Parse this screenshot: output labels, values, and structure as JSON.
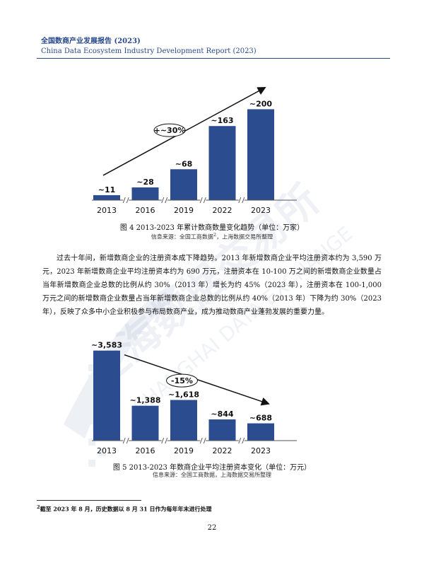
{
  "header": {
    "title_cn": "全国数商产业发展报告 (2023)",
    "title_en": "China Data Ecosystem Industry Development Report (2023)"
  },
  "watermark": {
    "text_cn": "上海数据交易所",
    "text_en": "SHANGHAI DATA EXCHANGE"
  },
  "figure4": {
    "caption": "图 4  2013-2023  年累计数商数量变化趋势（单位：万家）",
    "source": "信息来源：全国工商数据",
    "source_sup": "2",
    "source_tail": "，上海数据交易所整理",
    "chart_data": {
      "type": "bar",
      "categories": [
        "2013",
        "2016",
        "2019",
        "2022",
        "2023"
      ],
      "values": [
        11,
        28,
        68,
        163,
        200
      ],
      "value_labels": [
        "~11",
        "~28",
        "~68",
        "~163",
        "~200"
      ],
      "annotation": "+~30%",
      "trend": "up",
      "axis_breaks": true,
      "ylim": [
        0,
        210
      ],
      "bar_color": "#2b4d8f"
    }
  },
  "paragraph": "过去十年间，新增数商企业的注册资本成下降趋势。2013 年新增数商企业平均注册资本约为 3,590 万元，2023 年新增数商企业平均注册资本约为 690 万元，注册资本在 10-100 万之间的新增数商企业数量占当年新增数商企业总数的比例从约 30%（2013 年）增长为约 45%（2023 年），注册资本在 100-1,000 万元之间的新增数商企业数量占当年新增数商企业总数的比例从约 40%（2013 年）下降为约 30%（2023 年），反映了众多中小企业积极参与布局数商产业，成为推动数商产业蓬勃发展的重要力量。",
  "figure5": {
    "caption": "图 5  2013-2023  年数商企业平均注册资本变化（单位：万元）",
    "source": "信息来源：全国工商数据，上海数据交易所整理",
    "chart_data": {
      "type": "bar",
      "categories": [
        "2013",
        "2016",
        "2019",
        "2022",
        "2023"
      ],
      "values": [
        3583,
        1388,
        1618,
        844,
        688
      ],
      "value_labels": [
        "~3,583",
        "~1,388",
        "~1,618",
        "~844",
        "~688"
      ],
      "annotation": "-15%",
      "trend": "down",
      "axis_breaks": true,
      "ylim": [
        0,
        3800
      ],
      "bar_color": "#2b4d8f"
    }
  },
  "footnote": {
    "mark": "2",
    "text": "截至 2023 年 8 月，历史数据以 8 月 31 日作为每年年末进行处理"
  },
  "page_number": "22"
}
